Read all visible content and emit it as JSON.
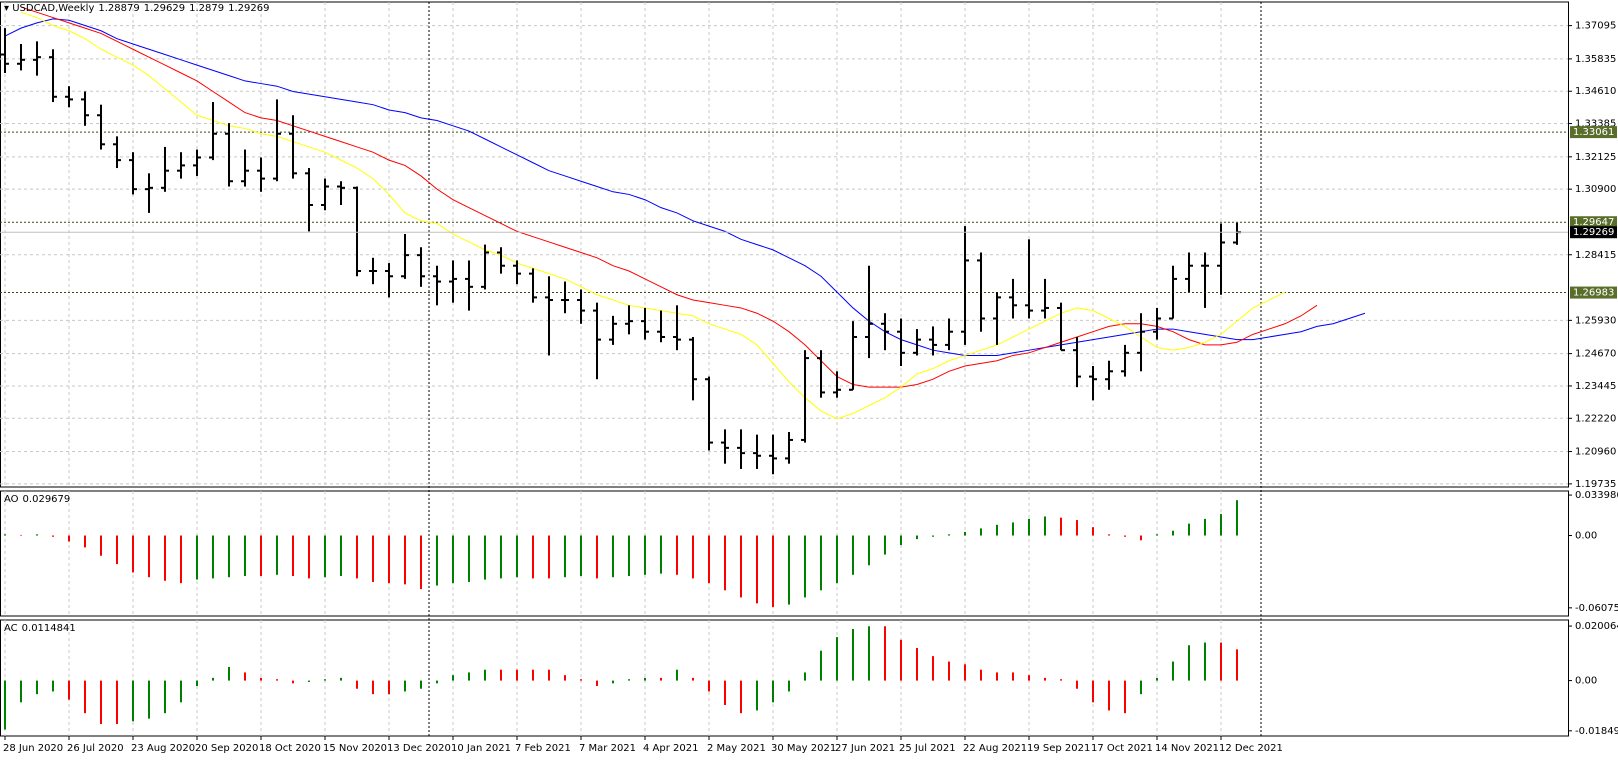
{
  "chart_data": [
    {
      "type": "ohlc",
      "title": "USDCAD,Weekly",
      "grid": true,
      "categories": [
        "28 Jun 2020",
        null,
        null,
        null,
        "26 Jul 2020",
        null,
        null,
        null,
        "23 Aug 2020",
        null,
        null,
        null,
        "20 Sep 2020",
        null,
        null,
        null,
        "18 Oct 2020",
        null,
        null,
        null,
        "15 Nov 2020",
        null,
        null,
        null,
        "13 Dec 2020",
        null,
        null,
        null,
        "10 Jan 2021",
        null,
        null,
        null,
        "7 Feb 2021",
        null,
        null,
        null,
        "7 Mar 2021",
        null,
        null,
        null,
        "4 Apr 2021",
        null,
        null,
        null,
        "2 May 2021",
        null,
        null,
        null,
        "30 May 2021",
        null,
        null,
        null,
        "27 Jun 2021",
        null,
        null,
        null,
        "25 Jul 2021",
        null,
        null,
        null,
        "22 Aug 2021",
        null,
        null,
        null,
        "19 Sep 2021",
        null,
        null,
        null,
        "17 Oct 2021",
        null,
        null,
        null,
        "14 Nov 2021",
        null,
        null,
        null,
        "12 Dec 2021",
        null,
        null,
        null,
        null,
        null,
        null,
        null,
        null,
        null
      ],
      "ohlc": [
        [
          1.36,
          1.37,
          1.353,
          1.3565
        ],
        [
          1.3565,
          1.364,
          1.354,
          1.358
        ],
        [
          1.358,
          1.365,
          1.352,
          1.359
        ],
        [
          1.359,
          1.362,
          1.342,
          1.344
        ],
        [
          1.344,
          1.348,
          1.34,
          1.343
        ],
        [
          1.343,
          1.346,
          1.333,
          1.337
        ],
        [
          1.337,
          1.341,
          1.324,
          1.326
        ],
        [
          1.326,
          1.329,
          1.317,
          1.32
        ],
        [
          1.32,
          1.323,
          1.307,
          1.309
        ],
        [
          1.309,
          1.315,
          1.3,
          1.3095
        ],
        [
          1.3095,
          1.325,
          1.308,
          1.316
        ],
        [
          1.316,
          1.323,
          1.313,
          1.318
        ],
        [
          1.318,
          1.324,
          1.314,
          1.321
        ],
        [
          1.321,
          1.342,
          1.32,
          1.33
        ],
        [
          1.33,
          1.334,
          1.31,
          1.312
        ],
        [
          1.312,
          1.324,
          1.31,
          1.316
        ],
        [
          1.316,
          1.321,
          1.308,
          1.313
        ],
        [
          1.313,
          1.343,
          1.312,
          1.33
        ],
        [
          1.33,
          1.337,
          1.313,
          1.315
        ],
        [
          1.315,
          1.317,
          1.293,
          1.303
        ],
        [
          1.303,
          1.313,
          1.301,
          1.31
        ],
        [
          1.31,
          1.312,
          1.303,
          1.3095
        ],
        [
          1.3095,
          1.31,
          1.276,
          1.278
        ],
        [
          1.278,
          1.283,
          1.273,
          1.278
        ],
        [
          1.278,
          1.281,
          1.268,
          1.276
        ],
        [
          1.276,
          1.292,
          1.275,
          1.284
        ],
        [
          1.284,
          1.287,
          1.272,
          1.276
        ],
        [
          1.276,
          1.28,
          1.265,
          1.274
        ],
        [
          1.274,
          1.282,
          1.266,
          1.275
        ],
        [
          1.275,
          1.282,
          1.263,
          1.272
        ],
        [
          1.272,
          1.288,
          1.271,
          1.285
        ],
        [
          1.285,
          1.287,
          1.277,
          1.28
        ],
        [
          1.28,
          1.282,
          1.273,
          1.277
        ],
        [
          1.277,
          1.279,
          1.266,
          1.268
        ],
        [
          1.268,
          1.276,
          1.246,
          1.267
        ],
        [
          1.267,
          1.274,
          1.262,
          1.267
        ],
        [
          1.267,
          1.271,
          1.258,
          1.263
        ],
        [
          1.263,
          1.266,
          1.237,
          1.252
        ],
        [
          1.252,
          1.261,
          1.25,
          1.258
        ],
        [
          1.258,
          1.265,
          1.254,
          1.259
        ],
        [
          1.259,
          1.264,
          1.252,
          1.255
        ],
        [
          1.255,
          1.263,
          1.251,
          1.253
        ],
        [
          1.253,
          1.265,
          1.248,
          1.252
        ],
        [
          1.252,
          1.253,
          1.229,
          1.237
        ],
        [
          1.237,
          1.238,
          1.21,
          1.213
        ],
        [
          1.213,
          1.218,
          1.205,
          1.211
        ],
        [
          1.211,
          1.218,
          1.203,
          1.209
        ],
        [
          1.209,
          1.216,
          1.203,
          1.208
        ],
        [
          1.208,
          1.216,
          1.201,
          1.207
        ],
        [
          1.207,
          1.217,
          1.205,
          1.214
        ],
        [
          1.214,
          1.248,
          1.213,
          1.245
        ],
        [
          1.245,
          1.248,
          1.23,
          1.232
        ],
        [
          1.232,
          1.24,
          1.23,
          1.233
        ],
        [
          1.233,
          1.259,
          1.233,
          1.253
        ],
        [
          1.253,
          1.28,
          1.245,
          1.258
        ],
        [
          1.258,
          1.262,
          1.248,
          1.255
        ],
        [
          1.255,
          1.26,
          1.242,
          1.247
        ],
        [
          1.247,
          1.256,
          1.246,
          1.252
        ],
        [
          1.252,
          1.257,
          1.246,
          1.25
        ],
        [
          1.25,
          1.26,
          1.248,
          1.255
        ],
        [
          1.255,
          1.295,
          1.25,
          1.282
        ],
        [
          1.282,
          1.285,
          1.255,
          1.26
        ],
        [
          1.26,
          1.27,
          1.25,
          1.268
        ],
        [
          1.268,
          1.275,
          1.26,
          1.265
        ],
        [
          1.265,
          1.29,
          1.26,
          1.263
        ],
        [
          1.263,
          1.275,
          1.26,
          1.264
        ],
        [
          1.264,
          1.266,
          1.248,
          1.248
        ],
        [
          1.248,
          1.253,
          1.234,
          1.238
        ],
        [
          1.238,
          1.242,
          1.229,
          1.237
        ],
        [
          1.237,
          1.244,
          1.233,
          1.24
        ],
        [
          1.24,
          1.25,
          1.238,
          1.247
        ],
        [
          1.247,
          1.262,
          1.24,
          1.255
        ],
        [
          1.255,
          1.264,
          1.252,
          1.26
        ],
        [
          1.26,
          1.28,
          1.26,
          1.275
        ],
        [
          1.275,
          1.285,
          1.27,
          1.28
        ],
        [
          1.28,
          1.285,
          1.264,
          1.28
        ],
        [
          1.28,
          1.296,
          1.269,
          1.2888
        ],
        [
          1.28879,
          1.29629,
          1.2879,
          1.29269
        ],
        null,
        null,
        null,
        null,
        null,
        null,
        null,
        null
      ],
      "color": "#000000",
      "series": [
        {
          "color": "#0000ff",
          "values": [
            1.367,
            1.37,
            1.372,
            1.3735,
            1.373,
            1.371,
            1.369,
            1.366,
            1.364,
            1.362,
            1.36,
            1.358,
            1.356,
            1.354,
            1.352,
            1.35,
            1.349,
            1.348,
            1.346,
            1.345,
            1.344,
            1.343,
            1.342,
            1.341,
            1.339,
            1.338,
            1.336,
            1.335,
            1.333,
            1.331,
            1.328,
            1.325,
            1.322,
            1.319,
            1.316,
            1.314,
            1.312,
            1.31,
            1.308,
            1.307,
            1.305,
            1.302,
            1.3,
            1.297,
            1.295,
            1.293,
            1.29,
            1.288,
            1.286,
            1.283,
            1.28,
            1.276,
            1.27,
            1.264,
            1.259,
            1.255,
            1.252,
            1.25,
            1.248,
            1.247,
            1.246,
            1.246,
            1.246,
            1.247,
            1.248,
            1.249,
            1.25,
            1.251,
            1.252,
            1.253,
            1.254,
            1.255,
            1.256,
            1.256,
            1.255,
            1.254,
            1.253,
            1.252,
            1.252,
            1.253,
            1.254,
            1.255,
            1.257,
            1.258,
            1.26,
            1.262
          ]
        },
        {
          "color": "#ff0000",
          "values": [
            null,
            1.378,
            1.376,
            1.374,
            1.372,
            1.37,
            1.368,
            1.365,
            1.362,
            1.359,
            1.356,
            1.353,
            1.35,
            1.346,
            1.342,
            1.338,
            1.336,
            1.335,
            1.333,
            1.331,
            1.329,
            1.327,
            1.325,
            1.323,
            1.32,
            1.318,
            1.314,
            1.309,
            1.305,
            1.302,
            1.299,
            1.296,
            1.293,
            1.291,
            1.289,
            1.287,
            1.285,
            1.283,
            1.28,
            1.278,
            1.275,
            1.272,
            1.269,
            1.267,
            1.266,
            1.265,
            1.264,
            1.262,
            1.259,
            1.255,
            1.25,
            1.244,
            1.238,
            1.235,
            1.234,
            1.234,
            1.234,
            1.235,
            1.237,
            1.24,
            1.242,
            1.243,
            1.244,
            1.246,
            1.247,
            1.249,
            1.251,
            1.253,
            1.255,
            1.257,
            1.258,
            1.258,
            1.257,
            1.255,
            1.252,
            1.25,
            1.25,
            1.251,
            1.254,
            1.256,
            1.258,
            1.261,
            1.265,
            null,
            null,
            null
          ]
        },
        {
          "color": "#ffff00",
          "values": [
            null,
            1.376,
            1.374,
            1.371,
            1.369,
            1.366,
            1.362,
            1.359,
            1.356,
            1.352,
            1.347,
            1.342,
            1.337,
            1.335,
            1.333,
            1.332,
            1.33,
            1.329,
            1.327,
            1.325,
            1.323,
            1.32,
            1.317,
            1.313,
            1.307,
            1.3,
            1.297,
            1.296,
            1.292,
            1.289,
            1.286,
            1.284,
            1.281,
            1.279,
            1.277,
            1.275,
            1.272,
            1.269,
            1.267,
            1.265,
            1.264,
            1.263,
            1.262,
            1.261,
            1.258,
            1.256,
            1.254,
            1.25,
            1.243,
            1.236,
            1.23,
            1.225,
            1.222,
            1.224,
            1.227,
            1.23,
            1.234,
            1.239,
            1.241,
            1.244,
            1.246,
            1.248,
            1.25,
            1.253,
            1.256,
            1.259,
            1.262,
            1.264,
            1.263,
            1.26,
            1.257,
            1.253,
            1.249,
            1.248,
            1.249,
            1.251,
            1.254,
            1.259,
            1.264,
            1.267,
            1.27,
            null,
            null,
            null,
            null,
            null
          ]
        }
      ],
      "levels": [
        {
          "value": 1.33061,
          "color": "#5a6e2c"
        },
        {
          "value": 1.29647,
          "color": "#5a6e2c"
        },
        {
          "value": 1.26983,
          "color": "#5a6e2c"
        }
      ],
      "price_line_color": "#c0c0c0",
      "ylim": [
        1.19617,
        1.3799
      ],
      "yticks": [
        1.37095,
        1.35835,
        {
          "value": 1.3461,
          "label": "1.34610"
        },
        1.33385,
        1.32125,
        {
          "value": 1.309,
          "label": "1.30900"
        },
        1.28415,
        {
          "value": 1.2593,
          "label": "1.25930"
        },
        {
          "value": 1.2467,
          "label": "1.24670"
        },
        1.23445,
        {
          "value": 1.2222,
          "label": "1.22220"
        },
        {
          "value": 1.2096,
          "label": "1.20960"
        },
        1.19735
      ]
    },
    {
      "type": "bar",
      "label": "AO",
      "up_color": "#008000",
      "down_color": "#ff0000",
      "values": [
        0.001,
        0.0005,
        0.001,
        -0.001,
        -0.005,
        -0.01,
        -0.017,
        -0.024,
        -0.031,
        -0.035,
        -0.038,
        -0.04,
        -0.037,
        -0.036,
        -0.035,
        -0.034,
        -0.034,
        -0.033,
        -0.034,
        -0.036,
        -0.035,
        -0.034,
        -0.036,
        -0.039,
        -0.04,
        -0.041,
        -0.045,
        -0.042,
        -0.04,
        -0.039,
        -0.037,
        -0.036,
        -0.035,
        -0.036,
        -0.036,
        -0.035,
        -0.034,
        -0.036,
        -0.035,
        -0.034,
        -0.033,
        -0.032,
        -0.033,
        -0.036,
        -0.04,
        -0.046,
        -0.052,
        -0.057,
        -0.06,
        -0.058,
        -0.052,
        -0.046,
        -0.04,
        -0.033,
        -0.025,
        -0.016,
        -0.008,
        -0.003,
        -0.001,
        0.001,
        0.003,
        0.006,
        0.009,
        0.011,
        0.014,
        0.016,
        0.015,
        0.013,
        0.007,
        0.001,
        -0.001,
        -0.004,
        0.001,
        0.004,
        0.01,
        0.014,
        0.018,
        0.029679
      ],
      "ylim": [
        -0.0676,
        0.0374
      ],
      "yticks": [
        0.033986,
        {
          "value": 0,
          "label": "0.00"
        },
        -0.060751
      ]
    },
    {
      "type": "bar",
      "label": "AC",
      "up_color": "#008000",
      "down_color": "#ff0000",
      "values": [
        -0.018,
        -0.008,
        -0.005,
        -0.004,
        -0.007,
        -0.012,
        -0.016,
        -0.016,
        -0.015,
        -0.014,
        -0.012,
        -0.008,
        -0.002,
        0.001,
        0.005,
        0.003,
        0.001,
        0.0005,
        -0.001,
        -0.0005,
        0.0005,
        0.001,
        -0.003,
        -0.005,
        -0.005,
        -0.004,
        -0.003,
        -0.001,
        0.002,
        0.003,
        0.004,
        0.004,
        0.004,
        0.004,
        0.004,
        0.002,
        0.0005,
        -0.002,
        -0.001,
        0.0005,
        0.001,
        0.001,
        0.004,
        0.001,
        -0.004,
        -0.009,
        -0.012,
        -0.011,
        -0.008,
        -0.004,
        0.003,
        0.011,
        0.016,
        0.019,
        0.02,
        0.02,
        0.015,
        0.012,
        0.009,
        0.007,
        0.006,
        0.004,
        0.003,
        0.003,
        0.002,
        0.001,
        0.0005,
        -0.003,
        -0.008,
        -0.011,
        -0.012,
        -0.005,
        0.001,
        0.007,
        0.013,
        0.014,
        0.014,
        0.0114841
      ],
      "ylim": [
        -0.0204,
        0.0223
      ],
      "yticks": [
        0.020064,
        {
          "value": 0,
          "label": "0.00"
        },
        {
          "value": -0.01849,
          "label": "-0.018490"
        }
      ]
    }
  ]
}
